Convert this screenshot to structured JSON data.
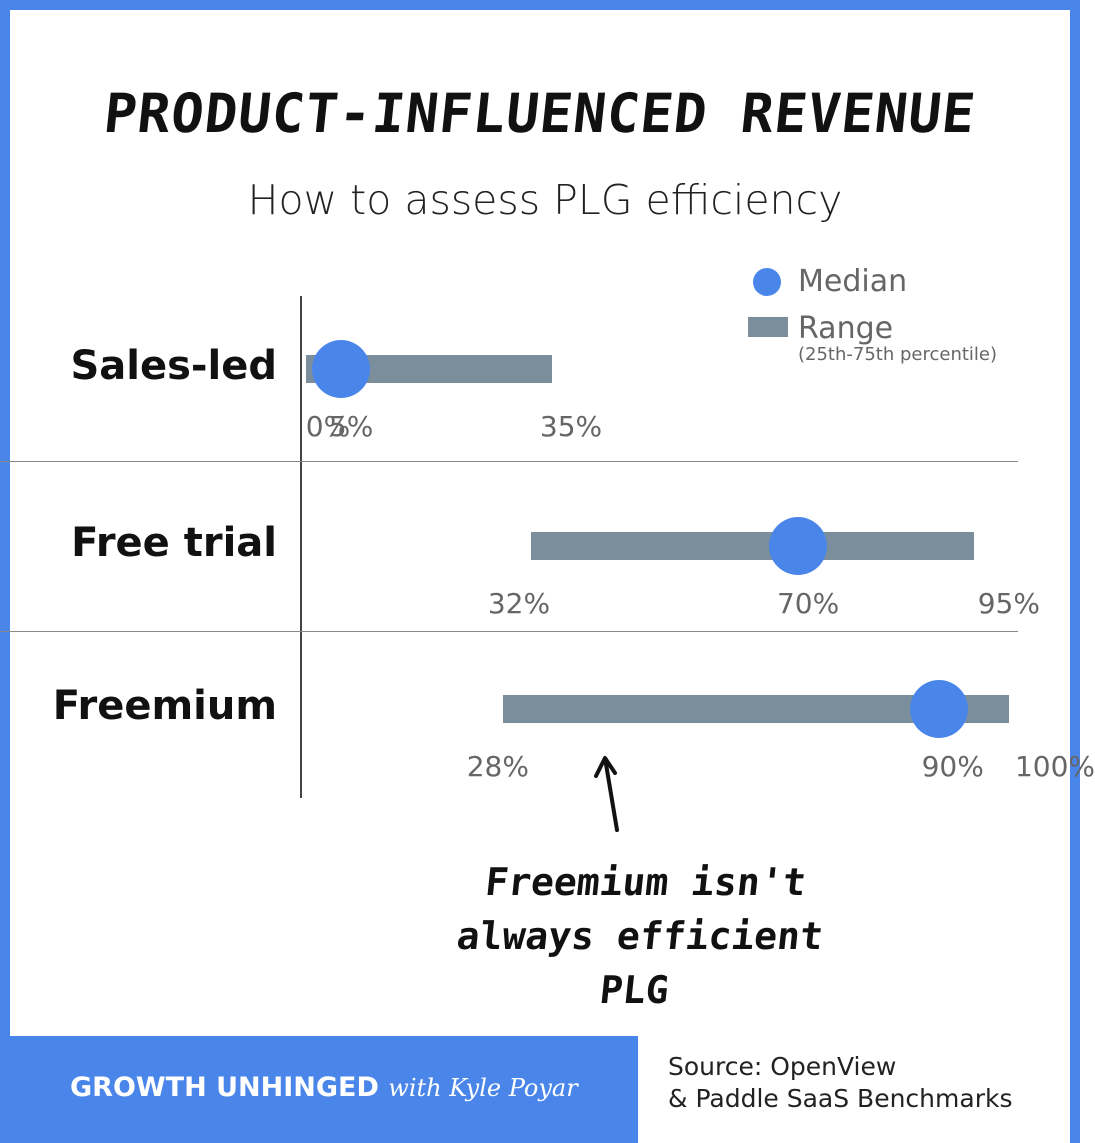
{
  "title": "PRODUCT-INFLUENCED REVENUE",
  "subtitle": "How to assess PLG efficiency",
  "legend": {
    "median_label": "Median",
    "range_label": "Range",
    "range_note": "(25th-75th percentile)",
    "median_color": "#4a86ea",
    "range_color": "#7a8f9b"
  },
  "chart_data": {
    "type": "range-dot",
    "title": "PRODUCT-INFLUENCED REVENUE",
    "subtitle": "How to assess PLG efficiency",
    "x_min": 0,
    "x_max": 100,
    "series": [
      {
        "name": "Median"
      },
      {
        "name": "Range"
      }
    ],
    "rows": [
      {
        "label": "Sales-led",
        "low": 0,
        "median": 5,
        "high": 35,
        "tick_labels": [
          "0%",
          "5%",
          "35%"
        ]
      },
      {
        "label": "Free trial",
        "low": 32,
        "median": 70,
        "high": 95,
        "tick_labels": [
          "32%",
          "70%",
          "95%"
        ]
      },
      {
        "label": "Freemium",
        "low": 28,
        "median": 90,
        "high": 100,
        "tick_labels": [
          "28%",
          "90%",
          "100%"
        ]
      }
    ]
  },
  "annotation": {
    "line1": "Freemium isn't",
    "line2": "always efficient PLG"
  },
  "footer": {
    "brand": "GROWTH UNHINGED",
    "brand_sub": "with Kyle Poyar",
    "source_line1": "Source: OpenView",
    "source_line2": "& Paddle SaaS Benchmarks",
    "accent": "#4a86ea"
  }
}
